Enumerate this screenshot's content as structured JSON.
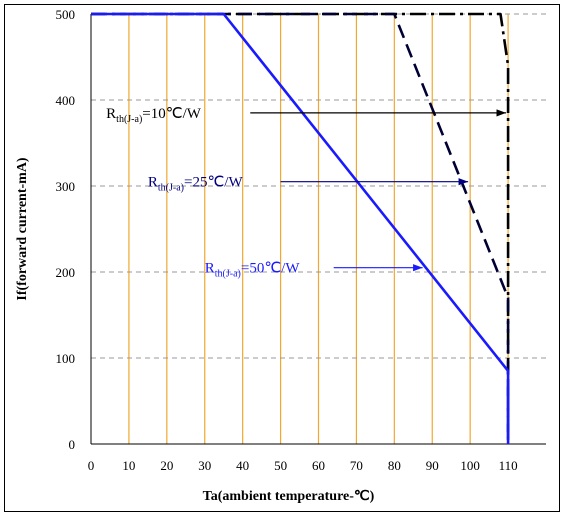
{
  "chart_data": {
    "type": "line",
    "xlabel": "Ta(ambient temperature-℃)",
    "ylabel": "If(forward current-mA)",
    "xlim": [
      0,
      120
    ],
    "ylim": [
      0,
      500
    ],
    "x_ticks": [
      "0",
      "10",
      "20",
      "30",
      "40",
      "50",
      "60",
      "70",
      "80",
      "90",
      "100",
      "110"
    ],
    "y_ticks": [
      "0",
      "100",
      "200",
      "300",
      "400",
      "500"
    ],
    "grid": {
      "vertical": "orange",
      "horizontal": "gray-dashed"
    },
    "series": [
      {
        "name": "Rth(J-a)=10℃/W",
        "color": "#000000",
        "style": "dashdot",
        "x": [
          0,
          108,
          110,
          110
        ],
        "y": [
          500,
          500,
          440,
          0
        ]
      },
      {
        "name": "Rth(J-a)=25℃/W",
        "color": "#000033",
        "style": "dashed",
        "x": [
          0,
          80,
          110,
          110
        ],
        "y": [
          500,
          500,
          170,
          0
        ]
      },
      {
        "name": "Rth(J-a)=50℃/W",
        "color": "#1a1aff",
        "style": "solid",
        "x": [
          0,
          35,
          110,
          110
        ],
        "y": [
          500,
          500,
          85,
          0
        ]
      }
    ],
    "annotations": [
      {
        "main": "R",
        "sub": "th(J-a)",
        "rest": "=10℃/W",
        "color": "#000000",
        "arrow_to_x": 110,
        "arrow_at_y": 385
      },
      {
        "main": "R",
        "sub": "th(J-a)",
        "rest": "=25℃/W",
        "color": "#000080",
        "arrow_to_x": 100,
        "arrow_at_y": 305
      },
      {
        "main": "R",
        "sub": "th(J-a)",
        "rest": "=50℃/W",
        "color": "#1a1aff",
        "arrow_to_x": 88,
        "arrow_at_y": 205
      }
    ]
  }
}
